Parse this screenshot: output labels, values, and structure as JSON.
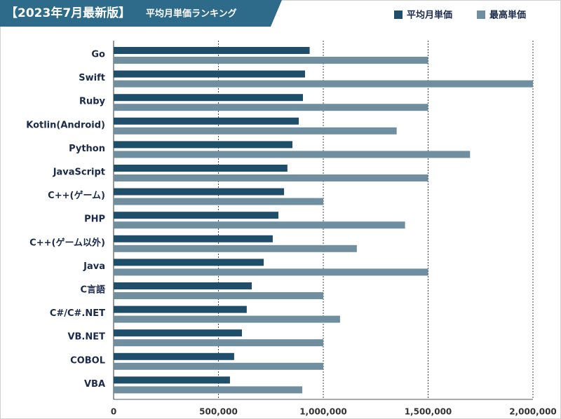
{
  "chart_data": {
    "type": "hbar",
    "title": "【2023年7月最新版】",
    "subtitle": "平均月単価ランキング",
    "categories": [
      "Go",
      "Swift",
      "Ruby",
      "Kotlin(Android)",
      "Python",
      "JavaScript",
      "C++(ゲーム)",
      "PHP",
      "C++(ゲーム以外)",
      "Java",
      "C言語",
      "C#/C#.NET",
      "VB.NET",
      "COBOL",
      "VBA"
    ],
    "series": [
      {
        "name": "平均月単価",
        "color": "#1f4e6b",
        "values": [
          935000,
          913000,
          903000,
          883000,
          853000,
          829000,
          813000,
          786000,
          759000,
          716000,
          659000,
          635000,
          612000,
          575000,
          555000
        ]
      },
      {
        "name": "最高単価",
        "color": "#6f8fa0",
        "values": [
          1500000,
          2000000,
          1500000,
          1350000,
          1700000,
          1500000,
          1000000,
          1390000,
          1160000,
          1500000,
          1000000,
          1080000,
          1000000,
          1000000,
          900000
        ]
      }
    ],
    "xlim": [
      0,
      2000000
    ],
    "xticks": [
      0,
      {
        "value": 500000,
        "label": "500,000"
      },
      {
        "value": 1000000,
        "label": "1,000,000"
      },
      {
        "value": 1500000,
        "label": "1,500,000"
      },
      {
        "value": 2000000,
        "label": "2,000,000"
      }
    ],
    "grid": true,
    "legend": "top-right"
  }
}
